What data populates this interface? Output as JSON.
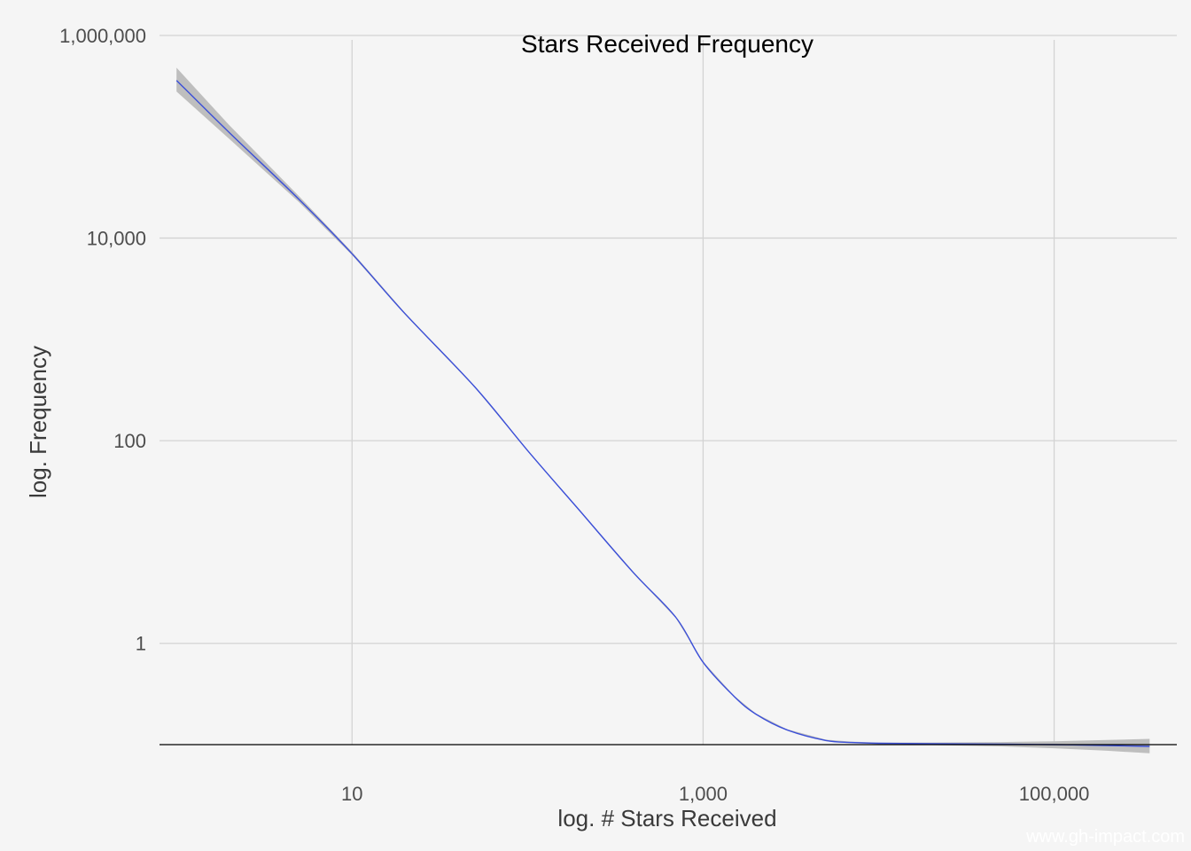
{
  "chart_data": {
    "type": "line",
    "title": "Stars Received Frequency",
    "xlabel": "log. # Stars Received",
    "ylabel": "log. Frequency",
    "x_scale": "log10",
    "y_scale": "log10",
    "xlim": [
      0.8,
      500000
    ],
    "ylim": [
      0.1,
      1000000
    ],
    "x_ticks": [
      10,
      1000,
      100000
    ],
    "x_tick_labels": [
      "10",
      "1,000",
      "100,000"
    ],
    "y_ticks": [
      1,
      100,
      10000,
      1000000
    ],
    "y_tick_labels": [
      "1",
      "100",
      "10,000",
      "1,000,000"
    ],
    "grid": true,
    "series": [
      {
        "color": "#3b4fd8",
        "ci_color": "#bebebe",
        "x": [
          1,
          2,
          5,
          10,
          20,
          50,
          100,
          200,
          400,
          700,
          1000,
          1500,
          2000,
          3000,
          5000,
          7000,
          10000,
          20000,
          50000,
          100000,
          200000,
          350000
        ],
        "y": [
          360000,
          110000,
          24000,
          7000,
          1800,
          340,
          80,
          20,
          5,
          1.8,
          0.65,
          0.3,
          0.2,
          0.14,
          0.11,
          0.105,
          0.103,
          0.102,
          0.101,
          0.1,
          0.098,
          0.096
        ],
        "ci_low": [
          280000,
          95000,
          22500,
          6800,
          1760,
          335,
          79,
          19.7,
          4.9,
          1.77,
          0.64,
          0.295,
          0.197,
          0.138,
          0.108,
          0.103,
          0.101,
          0.099,
          0.096,
          0.092,
          0.087,
          0.082
        ],
        "ci_high": [
          480000,
          130000,
          25800,
          7300,
          1840,
          345,
          81,
          20.3,
          5.1,
          1.83,
          0.66,
          0.305,
          0.203,
          0.142,
          0.112,
          0.107,
          0.105,
          0.105,
          0.106,
          0.108,
          0.111,
          0.114
        ]
      }
    ]
  },
  "watermark": "www.gh-impact.com"
}
